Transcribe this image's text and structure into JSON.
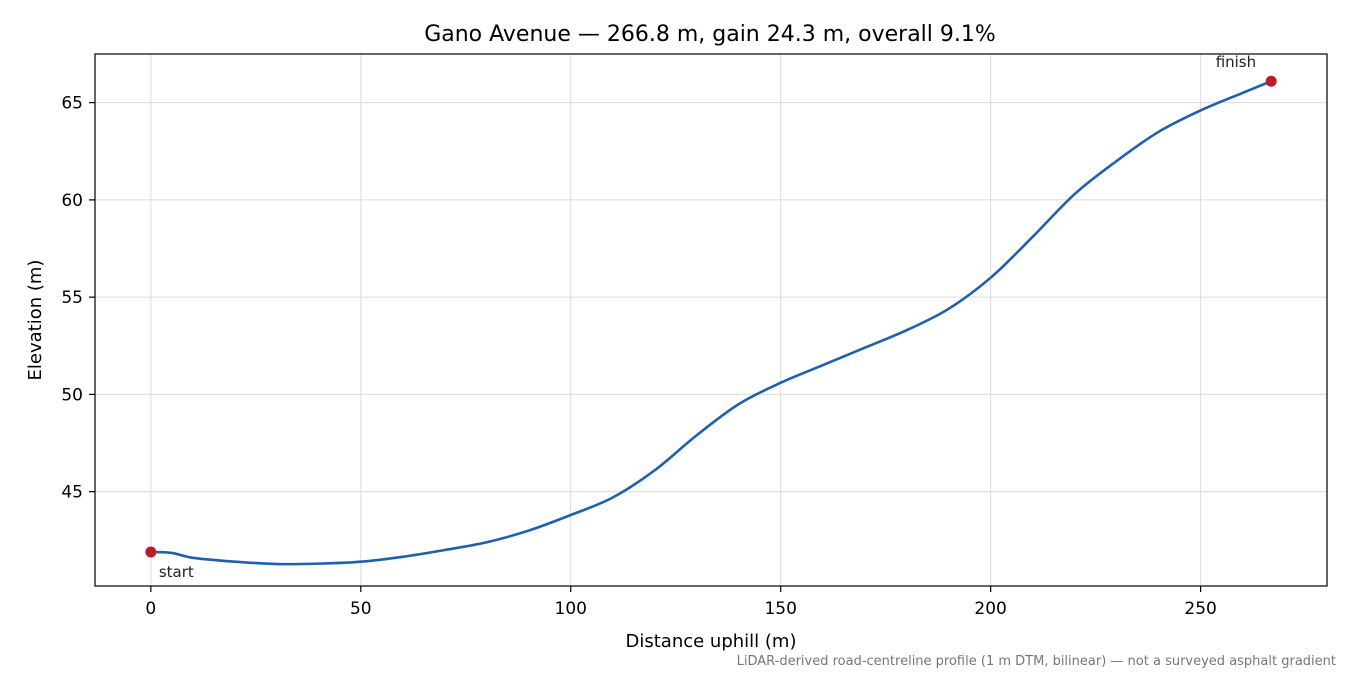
{
  "chart_data": {
    "type": "line",
    "title": "Gano Avenue — 266.8 m, gain 24.3 m, overall 9.1%",
    "xlabel": "Distance uphill (m)",
    "ylabel": "Elevation (m)",
    "xlim": [
      -13.3,
      280.1
    ],
    "ylim": [
      40.15,
      67.5
    ],
    "xticks": [
      0,
      50,
      100,
      150,
      200,
      250
    ],
    "yticks": [
      45,
      50,
      55,
      60,
      65
    ],
    "grid": true,
    "series": [
      {
        "color": "#1f5fad",
        "x": [
          0,
          5,
          10,
          20,
          30,
          40,
          50,
          60,
          70,
          80,
          90,
          100,
          110,
          120,
          130,
          140,
          150,
          160,
          170,
          180,
          190,
          200,
          210,
          220,
          230,
          240,
          250,
          260,
          266.8
        ],
        "y": [
          41.9,
          41.85,
          41.6,
          41.4,
          41.28,
          41.3,
          41.4,
          41.65,
          42.0,
          42.4,
          43.0,
          43.8,
          44.7,
          46.1,
          47.9,
          49.5,
          50.6,
          51.5,
          52.4,
          53.3,
          54.4,
          56.0,
          58.1,
          60.3,
          62.0,
          63.5,
          64.6,
          65.5,
          66.1
        ]
      }
    ],
    "points": [
      {
        "label": "start",
        "x": 0,
        "y": 41.9,
        "color": "#b71c2a"
      },
      {
        "label": "finish",
        "x": 266.8,
        "y": 66.1,
        "color": "#b71c2a"
      }
    ],
    "footnote": "LiDAR-derived road-centreline profile (1 m DTM, bilinear) — not a surveyed asphalt gradient"
  }
}
